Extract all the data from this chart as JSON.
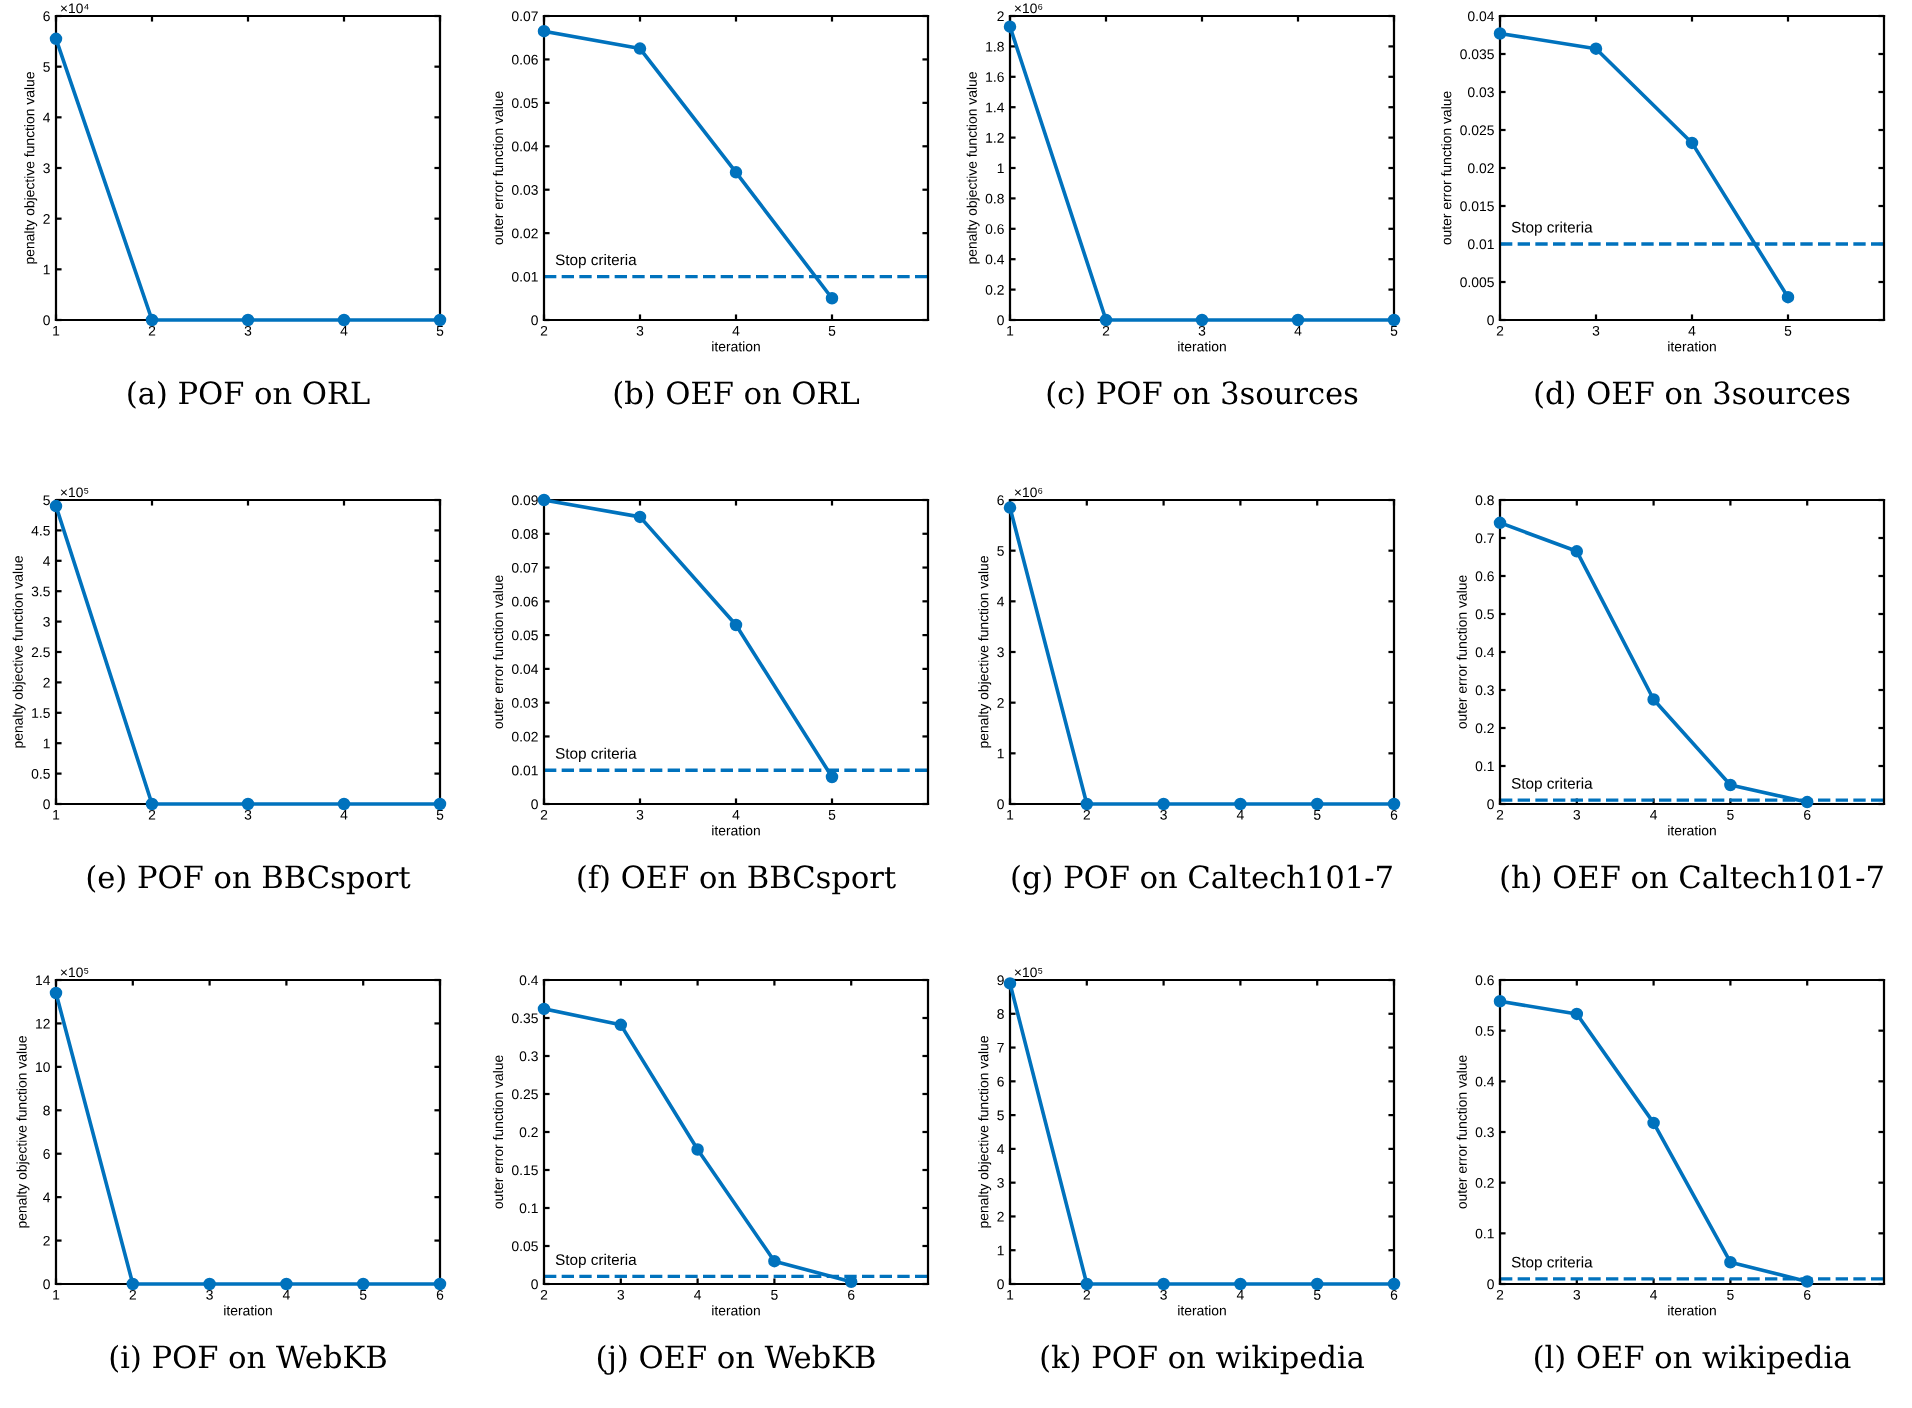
{
  "chart_data": [
    {
      "type": "line",
      "title": "(a) POF on ORL",
      "ylabel": "penalty objective function value",
      "x": [
        1,
        2,
        3,
        4,
        5
      ],
      "xlim": [
        1,
        5
      ],
      "xticks": [
        1,
        2,
        3,
        4,
        5
      ],
      "ylim": [
        0,
        6
      ],
      "yticks": [
        0,
        1,
        2,
        3,
        4,
        5,
        6
      ],
      "marker": "circle",
      "annotations": [
        "×10⁴"
      ],
      "series": [
        {
          "color": "#0072bd",
          "values": [
            5.55,
            0,
            0,
            0,
            0
          ]
        }
      ]
    },
    {
      "type": "line",
      "title": "(b) OEF on ORL",
      "xlabel": "iteration",
      "ylabel": "outer error function value",
      "x": [
        2,
        3,
        4,
        5
      ],
      "xlim": [
        2,
        6
      ],
      "xticks": [
        2,
        3,
        4,
        5
      ],
      "ylim": [
        0,
        0.07
      ],
      "yticks": [
        0,
        0.01,
        0.02,
        0.03,
        0.04,
        0.05,
        0.06,
        0.07
      ],
      "marker": "circle",
      "ref_lines": [
        {
          "axis": "y",
          "value": 0.01,
          "label": "Stop criteria",
          "color": "#0072bd",
          "line_style": "dashed"
        }
      ],
      "series": [
        {
          "color": "#0072bd",
          "values": [
            0.0665,
            0.0625,
            0.034,
            0.005
          ]
        }
      ]
    },
    {
      "type": "line",
      "title": "(c) POF on 3sources",
      "xlabel": "iteration",
      "ylabel": "penalty objective function value",
      "x": [
        1,
        2,
        3,
        4,
        5
      ],
      "xlim": [
        1,
        5
      ],
      "xticks": [
        1,
        2,
        3,
        4,
        5
      ],
      "ylim": [
        0,
        2
      ],
      "yticks": [
        0,
        0.2,
        0.4,
        0.6,
        0.8,
        1,
        1.2,
        1.4,
        1.6,
        1.8,
        2
      ],
      "marker": "circle",
      "annotations": [
        "×10⁶"
      ],
      "series": [
        {
          "color": "#0072bd",
          "values": [
            1.93,
            0,
            0,
            0,
            0
          ]
        }
      ]
    },
    {
      "type": "line",
      "title": "(d) OEF on 3sources",
      "xlabel": "iteration",
      "ylabel": "outer error function value",
      "x": [
        2,
        3,
        4,
        5
      ],
      "xlim": [
        2,
        6
      ],
      "xticks": [
        2,
        3,
        4,
        5
      ],
      "ylim": [
        0,
        0.04
      ],
      "yticks": [
        0,
        0.005,
        0.01,
        0.015,
        0.02,
        0.025,
        0.03,
        0.035,
        0.04
      ],
      "marker": "circle",
      "ref_lines": [
        {
          "axis": "y",
          "value": 0.01,
          "label": "Stop criteria",
          "color": "#0072bd",
          "line_style": "dashed"
        }
      ],
      "series": [
        {
          "color": "#0072bd",
          "values": [
            0.0377,
            0.0357,
            0.0233,
            0.003
          ]
        }
      ]
    },
    {
      "type": "line",
      "title": "(e) POF on BBCsport",
      "ylabel": "penalty objective function value",
      "x": [
        1,
        2,
        3,
        4,
        5
      ],
      "xlim": [
        1,
        5
      ],
      "xticks": [
        1,
        2,
        3,
        4,
        5
      ],
      "ylim": [
        0,
        5
      ],
      "yticks": [
        0,
        0.5,
        1,
        1.5,
        2,
        2.5,
        3,
        3.5,
        4,
        4.5,
        5
      ],
      "marker": "circle",
      "annotations": [
        "×10⁵"
      ],
      "series": [
        {
          "color": "#0072bd",
          "values": [
            4.9,
            0,
            0,
            0,
            0
          ]
        }
      ]
    },
    {
      "type": "line",
      "title": "(f) OEF on BBCsport",
      "xlabel": "iteration",
      "ylabel": "outer error function value",
      "x": [
        2,
        3,
        4,
        5
      ],
      "xlim": [
        2,
        6
      ],
      "xticks": [
        2,
        3,
        4,
        5
      ],
      "ylim": [
        0,
        0.09
      ],
      "yticks": [
        0,
        0.01,
        0.02,
        0.03,
        0.04,
        0.05,
        0.06,
        0.07,
        0.08,
        0.09
      ],
      "marker": "circle",
      "ref_lines": [
        {
          "axis": "y",
          "value": 0.01,
          "label": "Stop criteria",
          "color": "#0072bd",
          "line_style": "dashed"
        }
      ],
      "series": [
        {
          "color": "#0072bd",
          "values": [
            0.09,
            0.085,
            0.053,
            0.008
          ]
        }
      ]
    },
    {
      "type": "line",
      "title": "(g) POF on Caltech101-7",
      "ylabel": "penalty objective function value",
      "x": [
        1,
        2,
        3,
        4,
        5,
        6
      ],
      "xlim": [
        1,
        6
      ],
      "xticks": [
        1,
        2,
        3,
        4,
        5,
        6
      ],
      "ylim": [
        0,
        6
      ],
      "yticks": [
        0,
        1,
        2,
        3,
        4,
        5,
        6
      ],
      "marker": "circle",
      "annotations": [
        "×10⁶"
      ],
      "series": [
        {
          "color": "#0072bd",
          "values": [
            5.85,
            0,
            0,
            0,
            0,
            0
          ]
        }
      ]
    },
    {
      "type": "line",
      "title": "(h) OEF on Caltech101-7",
      "xlabel": "iteration",
      "ylabel": "outer error function value",
      "x": [
        2,
        3,
        4,
        5,
        6
      ],
      "xlim": [
        2,
        7
      ],
      "xticks": [
        2,
        3,
        4,
        5,
        6
      ],
      "ylim": [
        0,
        0.8
      ],
      "yticks": [
        0,
        0.1,
        0.2,
        0.3,
        0.4,
        0.5,
        0.6,
        0.7,
        0.8
      ],
      "marker": "circle",
      "ref_lines": [
        {
          "axis": "y",
          "value": 0.01,
          "label": "Stop criteria",
          "color": "#0072bd",
          "line_style": "dashed"
        }
      ],
      "series": [
        {
          "color": "#0072bd",
          "values": [
            0.74,
            0.665,
            0.275,
            0.05,
            0.005
          ]
        }
      ]
    },
    {
      "type": "line",
      "title": "(i) POF on WebKB",
      "xlabel": "iteration",
      "ylabel": "penalty objective function value",
      "x": [
        1,
        2,
        3,
        4,
        5,
        6
      ],
      "xlim": [
        1,
        6
      ],
      "xticks": [
        1,
        2,
        3,
        4,
        5,
        6
      ],
      "ylim": [
        0,
        14
      ],
      "yticks": [
        0,
        2,
        4,
        6,
        8,
        10,
        12,
        14
      ],
      "marker": "circle",
      "annotations": [
        "×10⁵"
      ],
      "series": [
        {
          "color": "#0072bd",
          "values": [
            13.4,
            0,
            0,
            0,
            0,
            0
          ]
        }
      ]
    },
    {
      "type": "line",
      "title": "(j) OEF on WebKB",
      "xlabel": "iteration",
      "ylabel": "outer error function value",
      "x": [
        2,
        3,
        4,
        5,
        6
      ],
      "xlim": [
        2,
        7
      ],
      "xticks": [
        2,
        3,
        4,
        5,
        6
      ],
      "ylim": [
        0,
        0.4
      ],
      "yticks": [
        0,
        0.05,
        0.1,
        0.15,
        0.2,
        0.25,
        0.3,
        0.35,
        0.4
      ],
      "marker": "circle",
      "ref_lines": [
        {
          "axis": "y",
          "value": 0.01,
          "label": "Stop criteria",
          "color": "#0072bd",
          "line_style": "dashed"
        }
      ],
      "series": [
        {
          "color": "#0072bd",
          "values": [
            0.362,
            0.341,
            0.177,
            0.03,
            0.003
          ]
        }
      ]
    },
    {
      "type": "line",
      "title": "(k) POF on wikipedia",
      "xlabel": "iteration",
      "ylabel": "penalty objective function value",
      "x": [
        1,
        2,
        3,
        4,
        5,
        6
      ],
      "xlim": [
        1,
        6
      ],
      "xticks": [
        1,
        2,
        3,
        4,
        5,
        6
      ],
      "ylim": [
        0,
        9
      ],
      "yticks": [
        0,
        1,
        2,
        3,
        4,
        5,
        6,
        7,
        8,
        9
      ],
      "marker": "circle",
      "annotations": [
        "×10⁵"
      ],
      "series": [
        {
          "color": "#0072bd",
          "values": [
            8.9,
            0,
            0,
            0,
            0,
            0
          ]
        }
      ]
    },
    {
      "type": "line",
      "title": "(l) OEF on wikipedia",
      "xlabel": "iteration",
      "ylabel": "outer error function value",
      "x": [
        2,
        3,
        4,
        5,
        6
      ],
      "xlim": [
        2,
        7
      ],
      "xticks": [
        2,
        3,
        4,
        5,
        6
      ],
      "ylim": [
        0,
        0.6
      ],
      "yticks": [
        0,
        0.1,
        0.2,
        0.3,
        0.4,
        0.5,
        0.6
      ],
      "marker": "circle",
      "ref_lines": [
        {
          "axis": "y",
          "value": 0.01,
          "label": "Stop criteria",
          "color": "#0072bd",
          "line_style": "dashed"
        }
      ],
      "series": [
        {
          "color": "#0072bd",
          "values": [
            0.558,
            0.533,
            0.318,
            0.043,
            0.005
          ]
        }
      ]
    }
  ]
}
